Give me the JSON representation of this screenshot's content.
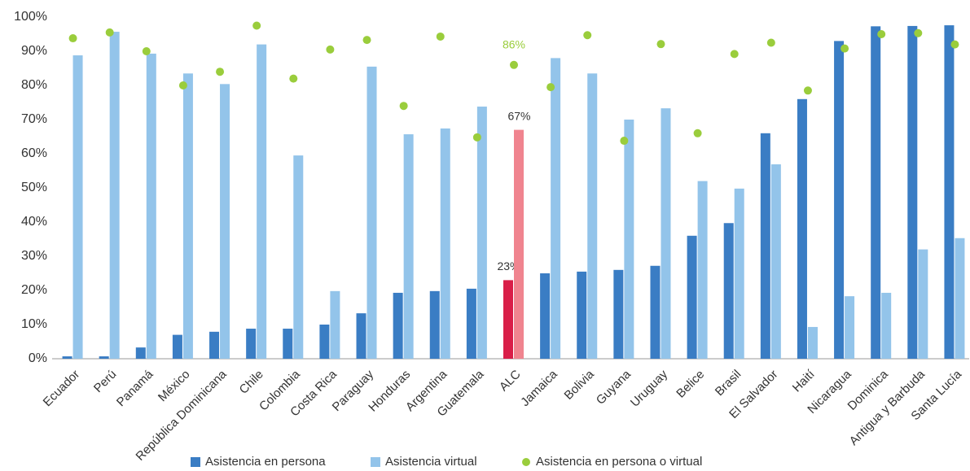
{
  "chart_data": {
    "type": "bar",
    "categories": [
      "Ecuador",
      "Perú",
      "Panamá",
      "México",
      "República Dominicana",
      "Chile",
      "Colombia",
      "Costa Rica",
      "Paraguay",
      "Honduras",
      "Argentina",
      "Guatemala",
      "ALC",
      "Jamaica",
      "Bolivia",
      "Guyana",
      "Uruguay",
      "Belice",
      "Brasil",
      "El Salvador",
      "Haití",
      "Nicaragua",
      "Dominica",
      "Antigua y Barbuda",
      "Santa Lucía"
    ],
    "highlight_category": "ALC",
    "series": [
      {
        "name": "Asistencia en persona",
        "kind": "bar",
        "color": "#3a7dc4",
        "highlight_color": "#d91e48",
        "values": [
          0.7,
          0.7,
          3.3,
          7,
          7.9,
          8.8,
          8.8,
          10,
          13.3,
          19.3,
          19.8,
          20.5,
          23,
          25,
          25.5,
          26,
          27.2,
          36,
          39.7,
          66,
          76,
          93,
          97.3,
          97.4,
          97.6
        ],
        "value_labels": [
          null,
          null,
          null,
          null,
          null,
          null,
          null,
          null,
          null,
          null,
          null,
          null,
          "23%",
          null,
          null,
          null,
          null,
          null,
          null,
          null,
          null,
          null,
          null,
          null,
          null
        ]
      },
      {
        "name": "Asistencia virtual",
        "kind": "bar",
        "color": "#93c4ea",
        "highlight_color": "#f0848f",
        "values": [
          88.8,
          95.7,
          89.3,
          83.5,
          80.4,
          92,
          59.5,
          19.8,
          85.5,
          65.7,
          67.4,
          73.8,
          67,
          88,
          83.5,
          70,
          73.3,
          52,
          49.8,
          56.9,
          9.3,
          18.3,
          19.3,
          32,
          35.3
        ],
        "value_labels": [
          null,
          null,
          null,
          null,
          null,
          null,
          null,
          null,
          null,
          null,
          null,
          null,
          "67%",
          null,
          null,
          null,
          null,
          null,
          null,
          null,
          null,
          null,
          null,
          null,
          null
        ]
      },
      {
        "name": "Asistencia en persona o virtual",
        "kind": "dot",
        "color": "#9acd3c",
        "highlight_color": "#9acd3c",
        "values": [
          93.8,
          95.5,
          90,
          80,
          84,
          97.5,
          82,
          90.5,
          93.3,
          74,
          94.3,
          64.8,
          86,
          79.5,
          94.7,
          63.8,
          92.1,
          66,
          89.2,
          92.5,
          78.5,
          90.8,
          95,
          95.3,
          92
        ],
        "value_labels": [
          null,
          null,
          null,
          null,
          null,
          null,
          null,
          null,
          null,
          null,
          null,
          null,
          "86%",
          null,
          null,
          null,
          null,
          null,
          null,
          null,
          null,
          null,
          null,
          null,
          null
        ]
      }
    ],
    "ylim": [
      0,
      100
    ],
    "yticks": [
      {
        "value": 0,
        "label": "0%"
      },
      {
        "value": 10,
        "label": "10%"
      },
      {
        "value": 20,
        "label": "20%"
      },
      {
        "value": 30,
        "label": "30%"
      },
      {
        "value": 40,
        "label": "40%"
      },
      {
        "value": 50,
        "label": "50%"
      },
      {
        "value": 60,
        "label": "60%"
      },
      {
        "value": 70,
        "label": "70%"
      },
      {
        "value": 80,
        "label": "80%"
      },
      {
        "value": 90,
        "label": "90%"
      },
      {
        "value": 100,
        "label": "100%"
      }
    ],
    "grid": false,
    "legend": "bottom"
  }
}
